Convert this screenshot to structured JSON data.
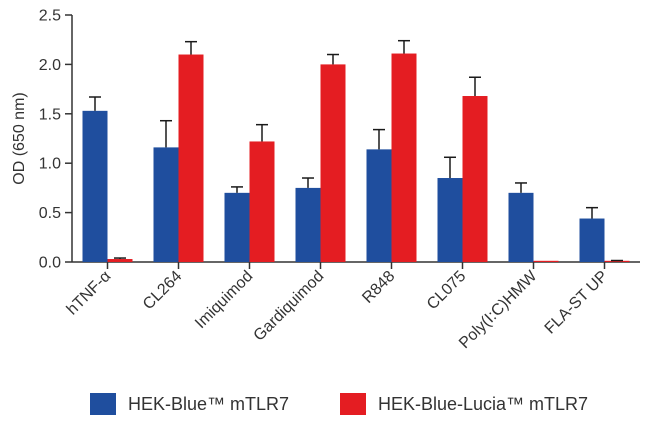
{
  "chart_data": {
    "type": "bar",
    "title": "",
    "xlabel": "",
    "ylabel": "OD (650 nm)",
    "ylim": [
      0,
      2.5
    ],
    "yticks": [
      "0.0",
      "0.5",
      "1.0",
      "1.5",
      "2.0",
      "2.5"
    ],
    "grid": false,
    "legend_position": "bottom",
    "categories": [
      "hTNF-α",
      "CL264",
      "Imiquimod",
      "Gardiquimod",
      "R848",
      "CL075",
      "Poly(I:C)HMW",
      "FLA-ST UP"
    ],
    "series": [
      {
        "name": "HEK-Blue™ mTLR7",
        "color": "#1f4e9e",
        "values": [
          1.53,
          1.16,
          0.7,
          0.75,
          1.14,
          0.85,
          0.7,
          0.44
        ],
        "errors": [
          0.14,
          0.27,
          0.06,
          0.1,
          0.2,
          0.21,
          0.1,
          0.11
        ]
      },
      {
        "name": "HEK-Blue-Lucia™ mTLR7",
        "color": "#e41d22",
        "values": [
          0.03,
          2.1,
          1.22,
          2.0,
          2.11,
          1.68,
          0.0,
          0.01
        ],
        "errors": [
          0.01,
          0.13,
          0.17,
          0.1,
          0.13,
          0.19,
          0.0,
          0.005
        ]
      }
    ]
  }
}
